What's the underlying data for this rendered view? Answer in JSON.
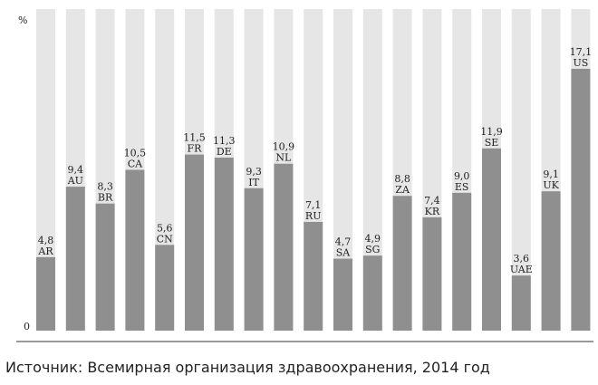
{
  "chart_data": {
    "type": "bar",
    "categories": [
      "AR",
      "AU",
      "BR",
      "CA",
      "CN",
      "FR",
      "DE",
      "IT",
      "NL",
      "RU",
      "SA",
      "SG",
      "ZA",
      "KR",
      "ES",
      "SE",
      "UAE",
      "UK",
      "US"
    ],
    "values": [
      4.8,
      9.4,
      8.3,
      10.5,
      5.6,
      11.5,
      11.3,
      9.3,
      10.9,
      7.1,
      4.7,
      4.9,
      8.8,
      7.4,
      9.0,
      11.9,
      3.6,
      9.1,
      17.1
    ],
    "value_labels": [
      "4,8",
      "9,4",
      "8,3",
      "10,5",
      "5,6",
      "11,5",
      "11,3",
      "9,3",
      "10,9",
      "7,1",
      "4,7",
      "4,9",
      "8,8",
      "7,4",
      "9,0",
      "11,9",
      "3,6",
      "9,1",
      "17,1"
    ],
    "ylabel": "%",
    "y_zero_label": "0",
    "ylim": [
      0,
      21
    ],
    "background_bars": true,
    "grid": false,
    "legend": "none",
    "colors": {
      "bar": "#8f8f8f",
      "background_bar": "#e6e6e6",
      "text": "#222222"
    }
  },
  "source_text": "Источник: Всемирная организация здравоохранения, 2014 год"
}
